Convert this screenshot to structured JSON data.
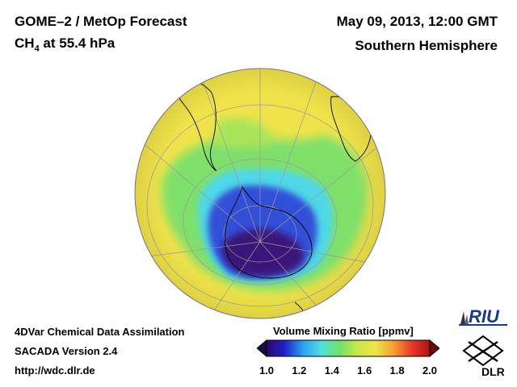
{
  "header": {
    "title": "GOME–2 / MetOp Forecast",
    "species_base": "CH",
    "species_sub": "4",
    "species_rest": " at 55.4 hPa",
    "date": "May 09, 2013, 12:00 GMT",
    "hemisphere": "Southern Hemisphere"
  },
  "footer": {
    "line1": "4DVar Chemical Data Assimilation",
    "line2": "SACADA Version 2.4",
    "line3": "http://wdc.dlr.de"
  },
  "colorbar": {
    "title": "Volume Mixing Ratio [ppmv]",
    "ticks": [
      "1.0",
      "1.2",
      "1.4",
      "1.6",
      "1.8",
      "2.0"
    ],
    "range": [
      1.0,
      2.0
    ],
    "colors": [
      "#2a0a6a",
      "#2020c8",
      "#2aa0f0",
      "#4fe0e0",
      "#6ee26a",
      "#c8e84a",
      "#f0e34a",
      "#f5a030",
      "#e83a2a",
      "#b01010"
    ]
  },
  "map": {
    "projection": "orthographic",
    "view": "south polar",
    "field_colors": {
      "background": "#f0e34a",
      "green_band": "#7ee06a",
      "cyan_ring": "#4fd8e8",
      "blue_core": "#3050d8",
      "purple_core": "#3a157a"
    }
  },
  "logos": {
    "riu": "RIU",
    "dlr": "DLR"
  }
}
